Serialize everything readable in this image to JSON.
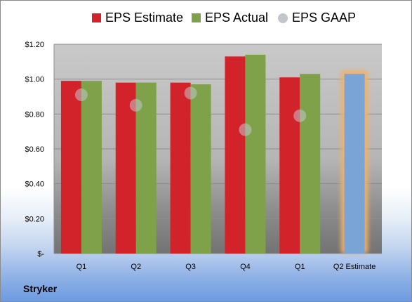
{
  "company": "Stryker",
  "colors": {
    "estimate": "#d2232a",
    "actual": "#7ea14a",
    "gaap": "#c2c6cc",
    "q2_estimate": "#7aa3d6",
    "highlight": "#f2b166"
  },
  "chart_data": {
    "type": "bar",
    "categories": [
      "Q1",
      "Q2",
      "Q3",
      "Q4",
      "Q1",
      "Q2 Estimate"
    ],
    "series": [
      {
        "name": "EPS Estimate",
        "values": [
          0.99,
          0.98,
          0.98,
          1.13,
          1.01,
          null
        ]
      },
      {
        "name": "EPS Actual",
        "values": [
          0.99,
          0.98,
          0.97,
          1.14,
          1.03,
          1.03
        ]
      },
      {
        "name": "EPS GAAP",
        "values": [
          0.91,
          0.85,
          0.92,
          0.71,
          0.79,
          null
        ]
      }
    ],
    "ylim": [
      0,
      1.2
    ],
    "yticks": [
      0,
      0.2,
      0.4,
      0.6,
      0.8,
      1.0,
      1.2
    ],
    "ytick_labels": [
      "$-",
      "$0.20",
      "$0.40",
      "$0.60",
      "$0.80",
      "$1.00",
      "$1.20"
    ],
    "grid": true,
    "legend": "top",
    "highlighted_category": "Q2 Estimate"
  }
}
